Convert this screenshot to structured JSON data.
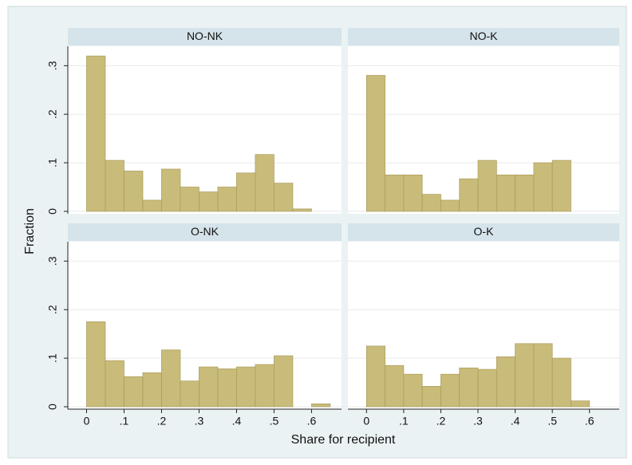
{
  "chart_data": {
    "type": "histogram",
    "xlabel": "Share for recipient",
    "ylabel": "Fraction",
    "xlim": [
      -0.05,
      0.68
    ],
    "ylim": [
      -0.005,
      0.34
    ],
    "xticks": [
      0,
      {
        "value": 0.1,
        "label": ".1"
      },
      {
        "value": 0.2,
        "label": ".2"
      },
      {
        "value": 0.3,
        "label": ".3"
      },
      {
        "value": 0.4,
        "label": ".4"
      },
      {
        "value": 0.5,
        "label": ".5"
      },
      {
        "value": 0.6,
        "label": ".6"
      }
    ],
    "yticks": [
      0,
      {
        "value": 0.1,
        "label": ".1"
      },
      {
        "value": 0.2,
        "label": ".2"
      },
      {
        "value": 0.3,
        "label": ".3"
      }
    ],
    "color": "#c9bc7a",
    "grid": true,
    "panels": [
      {
        "title": "NO-NK",
        "bins": [
          0,
          0.05,
          0.1,
          0.15,
          0.2,
          0.25,
          0.3,
          0.35,
          0.4,
          0.45,
          0.5,
          0.55,
          0.6
        ],
        "values": [
          0.32,
          0.105,
          0.083,
          0.023,
          0.087,
          0.05,
          0.04,
          0.05,
          0.079,
          0.117,
          0.058,
          0.005
        ]
      },
      {
        "title": "NO-K",
        "bins": [
          0,
          0.05,
          0.1,
          0.15,
          0.2,
          0.25,
          0.3,
          0.35,
          0.4,
          0.45,
          0.5,
          0.55
        ],
        "values": [
          0.28,
          0.075,
          0.075,
          0.035,
          0.023,
          0.067,
          0.105,
          0.075,
          0.075,
          0.1,
          0.105
        ]
      },
      {
        "title": "O-NK",
        "bins": [
          0,
          0.05,
          0.1,
          0.15,
          0.2,
          0.25,
          0.3,
          0.35,
          0.4,
          0.45,
          0.5,
          0.55,
          0.6,
          0.65
        ],
        "values": [
          0.175,
          0.095,
          0.062,
          0.07,
          0.117,
          0.053,
          0.082,
          0.078,
          0.082,
          0.087,
          0.105,
          0,
          0.006
        ]
      },
      {
        "title": "O-K",
        "bins": [
          0,
          0.05,
          0.1,
          0.15,
          0.2,
          0.25,
          0.3,
          0.35,
          0.4,
          0.45,
          0.5,
          0.55,
          0.6
        ],
        "values": [
          0.125,
          0.085,
          0.067,
          0.042,
          0.067,
          0.08,
          0.077,
          0.103,
          0.13,
          0.13,
          0.1,
          0.012
        ]
      }
    ]
  }
}
